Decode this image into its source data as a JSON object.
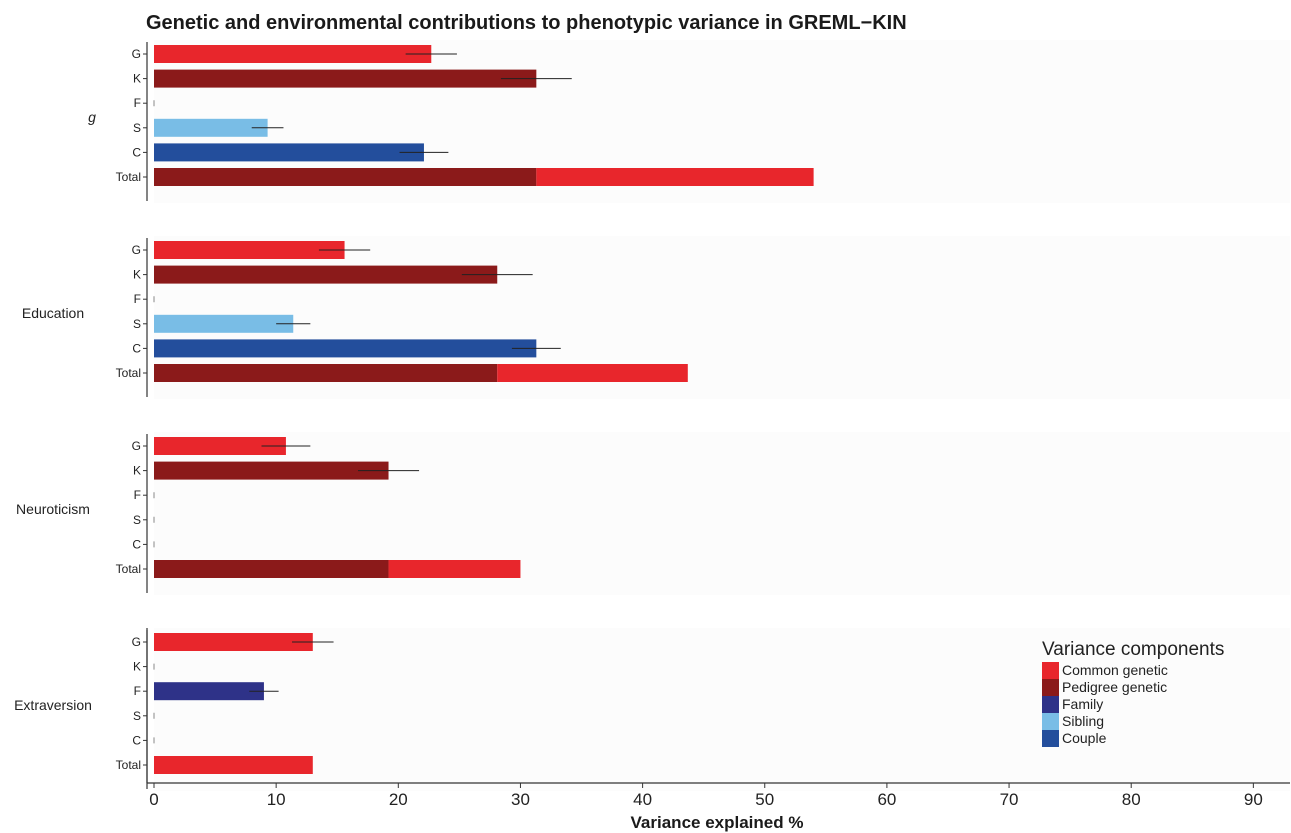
{
  "chart_data": {
    "type": "bar",
    "title": "Genetic and environmental contributions to phenotypic variance in GREML−KIN",
    "xlabel": "Variance explained %",
    "xlim": [
      0,
      93
    ],
    "xticks": [
      0,
      10,
      20,
      30,
      40,
      50,
      60,
      70,
      80,
      90
    ],
    "orientation": "horizontal",
    "row_labels": [
      "G",
      "K",
      "F",
      "S",
      "C",
      "Total"
    ],
    "colors": {
      "G": "#e8262c",
      "K": "#8b1a1a",
      "F": "#2e3288",
      "S": "#79bde6",
      "C": "#234e9c"
    },
    "legend": {
      "title": "Variance components",
      "position": "bottom-right",
      "entries": [
        {
          "key": "G",
          "label": "Common genetic"
        },
        {
          "key": "K",
          "label": "Pedigree genetic"
        },
        {
          "key": "F",
          "label": "Family"
        },
        {
          "key": "S",
          "label": "Sibling"
        },
        {
          "key": "C",
          "label": "Couple"
        }
      ]
    },
    "panels": [
      {
        "phenotype": "g",
        "italic": true,
        "values": {
          "G": 22.7,
          "K": 31.3,
          "F": 0,
          "S": 9.3,
          "C": 22.1
        },
        "errors": {
          "G": 2.1,
          "K": 2.9,
          "S": 1.3,
          "C": 2.0
        },
        "total": {
          "K": 31.3,
          "G": 22.7
        }
      },
      {
        "phenotype": "Education",
        "italic": false,
        "values": {
          "G": 15.6,
          "K": 28.1,
          "F": 0,
          "S": 11.4,
          "C": 31.3
        },
        "errors": {
          "G": 2.1,
          "K": 2.9,
          "S": 1.4,
          "C": 2.0
        },
        "total": {
          "K": 28.1,
          "G": 15.6
        }
      },
      {
        "phenotype": "Neuroticism",
        "italic": false,
        "values": {
          "G": 10.8,
          "K": 19.2,
          "F": 0,
          "S": 0,
          "C": 0
        },
        "errors": {
          "G": 2.0,
          "K": 2.5
        },
        "total": {
          "K": 19.2,
          "G": 10.8
        }
      },
      {
        "phenotype": "Extraversion",
        "italic": false,
        "values": {
          "G": 13.0,
          "K": 0,
          "F": 9.0,
          "S": 0,
          "C": 0
        },
        "errors": {
          "G": 1.7,
          "F": 1.2
        },
        "total": {
          "K": 0,
          "G": 13.0
        }
      }
    ]
  }
}
